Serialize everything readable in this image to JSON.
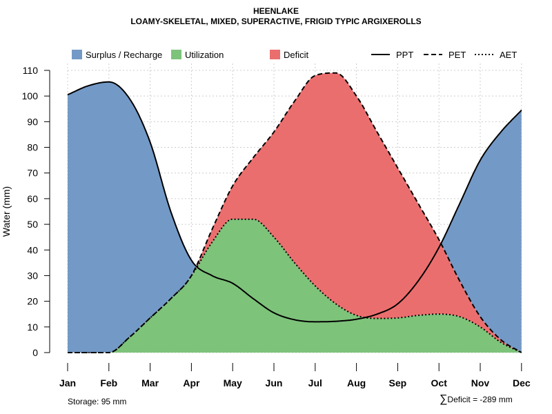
{
  "title_line1": "HEENLAKE",
  "title_line2": "LOAMY-SKELETAL, MIXED, SUPERACTIVE, FRIGID TYPIC ARGIXEROLLS",
  "footer": {
    "storage": "Storage: 95 mm",
    "deficit_symbol": "∑",
    "deficit": "Deficit = -289 mm"
  },
  "colors": {
    "surplus": "#7399C6",
    "utilization": "#7DC37A",
    "deficit": "#EB6E6E",
    "grid": "#cccccc",
    "line": "#000000"
  },
  "chart_data": {
    "type": "area",
    "title": "HEENLAKE",
    "subtitle": "LOAMY-SKELETAL, MIXED, SUPERACTIVE, FRIGID TYPIC ARGIXEROLLS",
    "xlabel": "",
    "ylabel": "Water (mm)",
    "ylim": [
      0,
      110
    ],
    "yticks": [
      0,
      10,
      20,
      30,
      40,
      50,
      60,
      70,
      80,
      90,
      100,
      110
    ],
    "grid": true,
    "categories": [
      "Jan",
      "Feb",
      "Mar",
      "Apr",
      "May",
      "Jun",
      "Jul",
      "Aug",
      "Sep",
      "Oct",
      "Nov",
      "Dec"
    ],
    "legend": {
      "placement": "top",
      "areas": [
        {
          "key": "surplus",
          "label": "Surplus / Recharge"
        },
        {
          "key": "utilization",
          "label": "Utilization"
        },
        {
          "key": "deficit",
          "label": "Deficit"
        }
      ],
      "lines": [
        {
          "key": "ppt",
          "label": "PPT",
          "style": "solid"
        },
        {
          "key": "pet",
          "label": "PET",
          "style": "dashed"
        },
        {
          "key": "aet",
          "label": "AET",
          "style": "dotted"
        }
      ]
    },
    "series": [
      {
        "name": "PPT",
        "x": [
          0,
          0.5,
          1,
          1.5,
          2,
          2.5,
          3,
          3.5,
          4,
          4.5,
          5,
          5.5,
          6,
          6.5,
          7,
          7.5,
          8,
          8.5,
          9,
          9.5,
          10,
          10.5,
          11
        ],
        "values": [
          100.5,
          104,
          105.5,
          99,
          82,
          55,
          36,
          30,
          27,
          21,
          15.5,
          12.8,
          12,
          12.2,
          13,
          15,
          19,
          28,
          41,
          58,
          75,
          86,
          94.5
        ]
      },
      {
        "name": "PET",
        "x": [
          0,
          0.5,
          1,
          1.5,
          2,
          2.5,
          3,
          3.5,
          4,
          4.5,
          5,
          5.5,
          6,
          6.5,
          7,
          7.5,
          8,
          8.5,
          9,
          9.5,
          10,
          10.5,
          11
        ],
        "values": [
          0,
          0,
          0,
          6,
          13.5,
          21,
          30,
          48,
          65,
          76,
          86,
          98,
          108,
          109,
          100,
          86,
          72,
          58,
          44,
          28,
          14,
          5,
          0
        ]
      },
      {
        "name": "AET",
        "x": [
          0,
          0.5,
          1,
          1.5,
          2,
          2.5,
          3,
          3.5,
          4,
          4.5,
          5,
          5.5,
          6,
          6.5,
          7,
          7.5,
          8,
          8.5,
          9,
          9.5,
          10,
          10.5,
          11
        ],
        "values": [
          0,
          0,
          0,
          6,
          13.5,
          21,
          30,
          43,
          52,
          52,
          45,
          35,
          26,
          19,
          14.5,
          13.3,
          13.5,
          14.5,
          15,
          14,
          10,
          4,
          0
        ]
      }
    ]
  }
}
